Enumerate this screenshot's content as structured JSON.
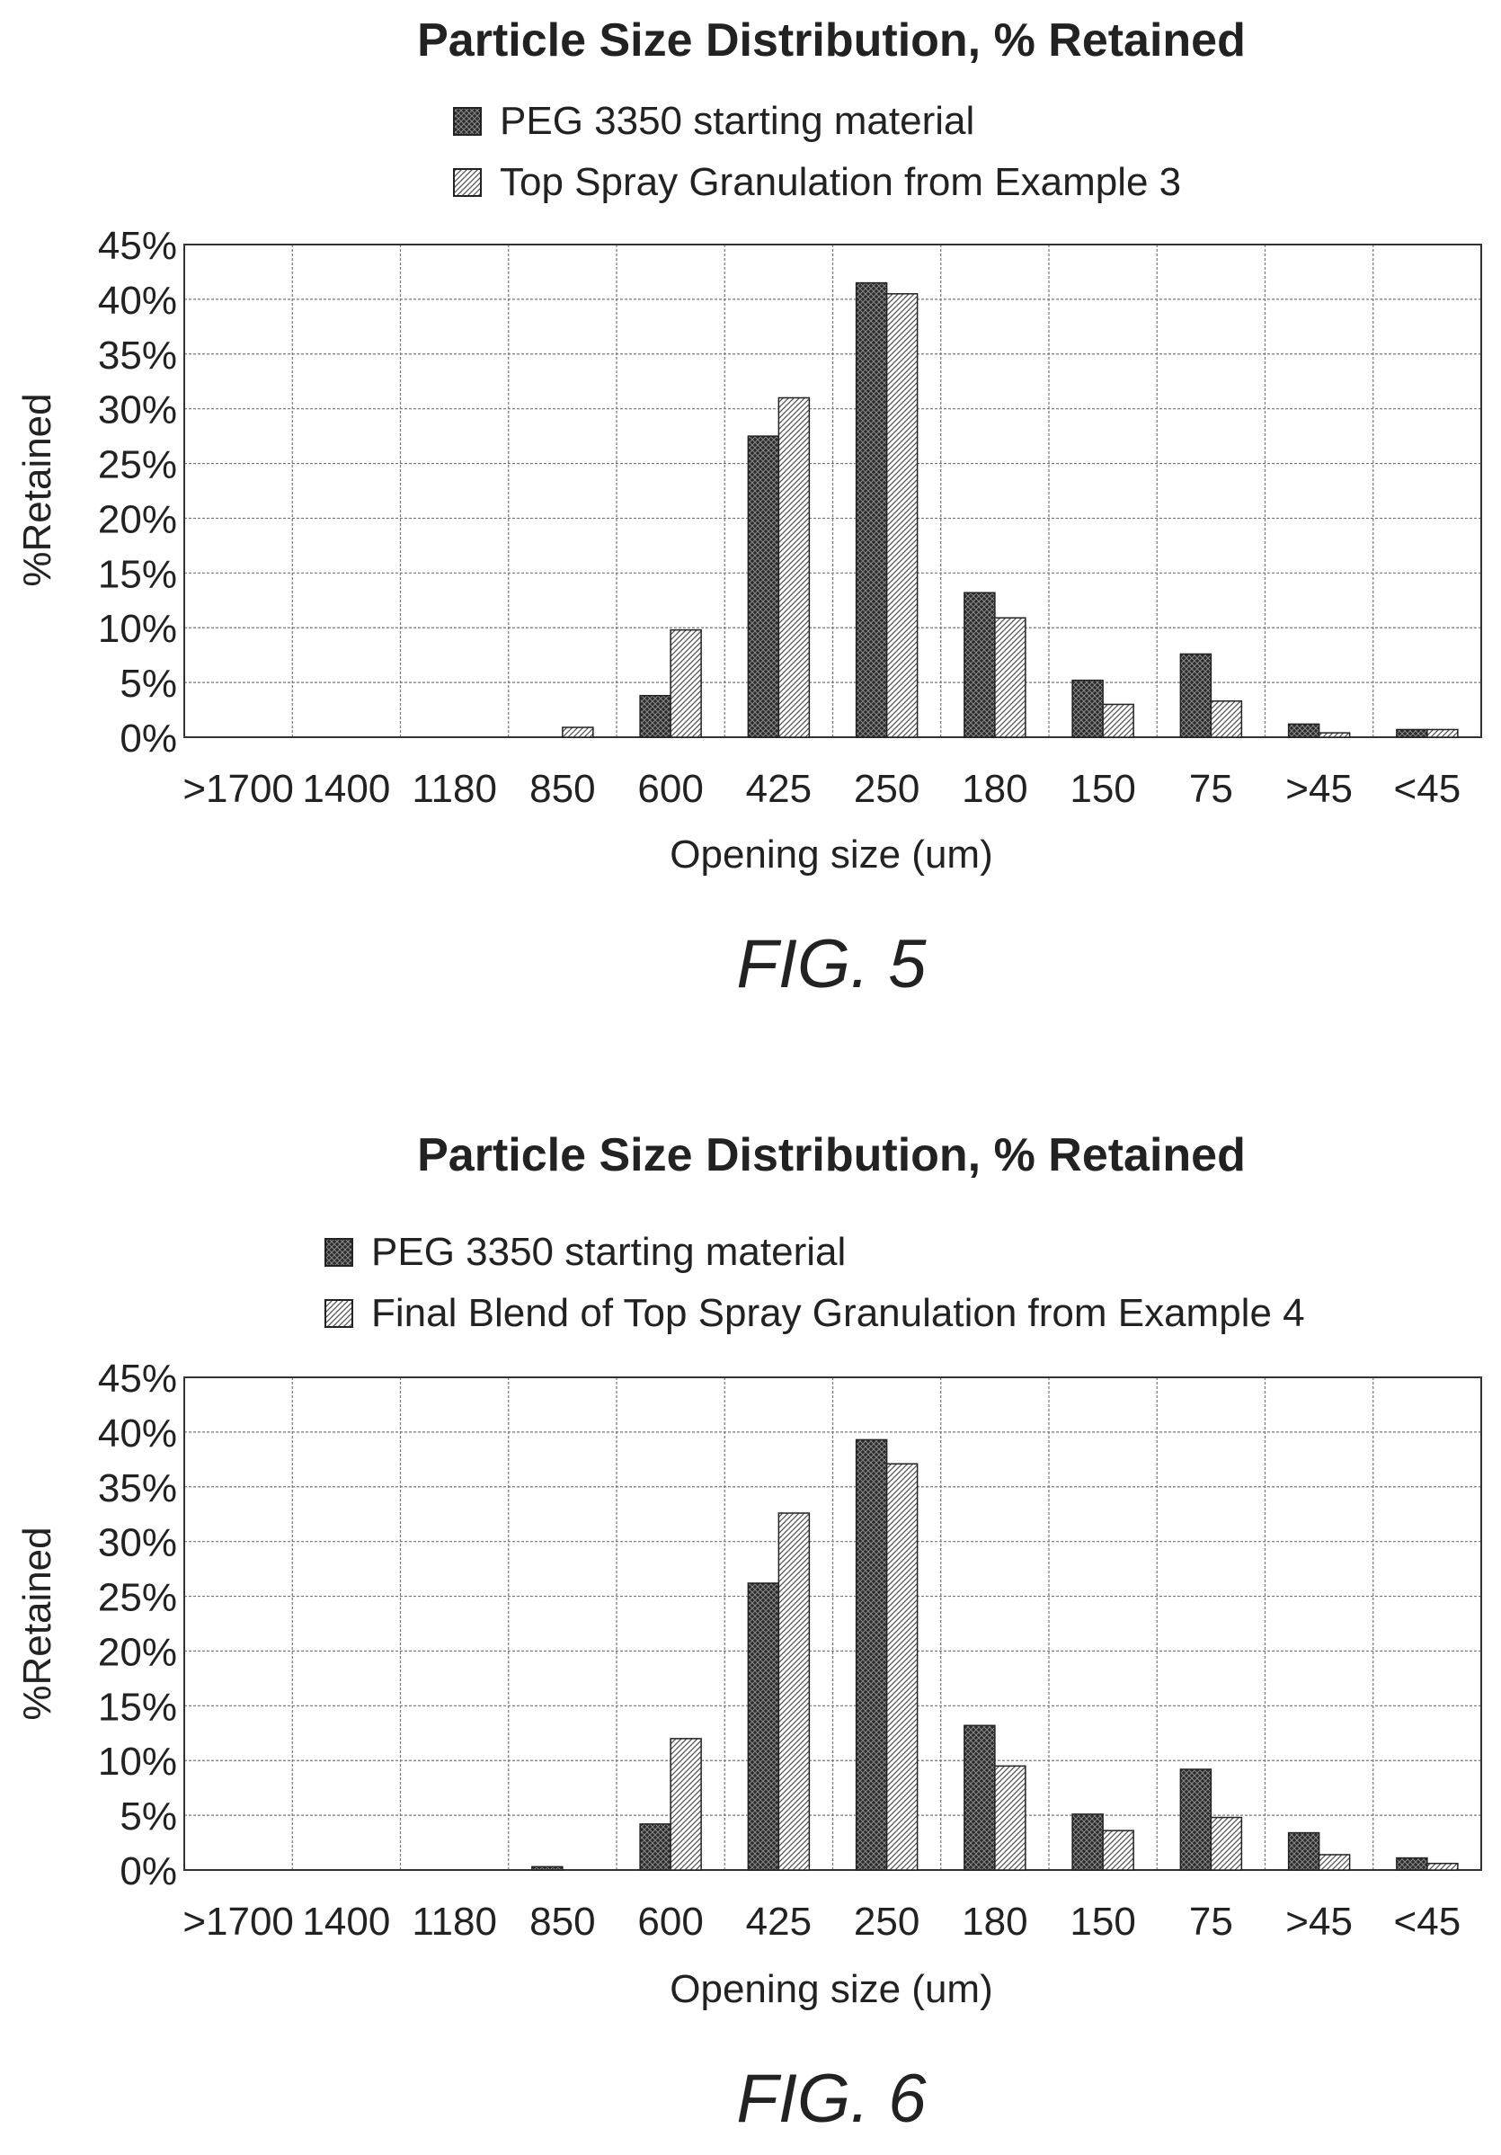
{
  "figures": [
    {
      "fig_label": "FIG. 5",
      "chart_data": {
        "type": "bar",
        "title": "Particle Size Distribution, % Retained",
        "xlabel": "Opening size (um)",
        "ylabel": "%Retained",
        "categories": [
          ">1700",
          "1400",
          "1180",
          "850",
          "600",
          "425",
          "250",
          "180",
          "150",
          "75",
          ">45",
          "<45"
        ],
        "y_ticks": [
          "0%",
          "5%",
          "10%",
          "15%",
          "20%",
          "25%",
          "30%",
          "35%",
          "40%",
          "45%"
        ],
        "ylim": [
          0,
          45
        ],
        "grid": true,
        "legend_position": "top",
        "series": [
          {
            "name": "PEG 3350 starting material",
            "pattern": "crosshatch-dark",
            "values": [
              0,
              0,
              0,
              0,
              3.8,
              27.5,
              41.5,
              13.2,
              5.2,
              7.6,
              1.2,
              0.7
            ]
          },
          {
            "name": "Top Spray Granulation from Example 3",
            "pattern": "diagonal-light",
            "values": [
              0,
              0,
              0,
              0.9,
              9.8,
              31.0,
              40.5,
              10.9,
              3.0,
              3.3,
              0.4,
              0.7
            ]
          }
        ]
      }
    },
    {
      "fig_label": "FIG. 6",
      "chart_data": {
        "type": "bar",
        "title": "Particle Size Distribution, % Retained",
        "xlabel": "Opening size (um)",
        "ylabel": "%Retained",
        "categories": [
          ">1700",
          "1400",
          "1180",
          "850",
          "600",
          "425",
          "250",
          "180",
          "150",
          "75",
          ">45",
          "<45"
        ],
        "y_ticks": [
          "0%",
          "5%",
          "10%",
          "15%",
          "20%",
          "25%",
          "30%",
          "35%",
          "40%",
          "45%"
        ],
        "ylim": [
          0,
          45
        ],
        "grid": true,
        "legend_position": "top",
        "series": [
          {
            "name": "PEG 3350 starting material",
            "pattern": "crosshatch-dark",
            "values": [
              0,
              0,
              0,
              0.3,
              4.2,
              26.2,
              39.3,
              13.2,
              5.1,
              9.2,
              3.4,
              1.1
            ]
          },
          {
            "name": "Final Blend of Top Spray Granulation from Example 4",
            "pattern": "diagonal-light",
            "values": [
              0,
              0,
              0,
              0,
              12.0,
              32.6,
              37.1,
              9.5,
              3.6,
              4.8,
              1.4,
              0.6
            ]
          }
        ]
      }
    }
  ]
}
